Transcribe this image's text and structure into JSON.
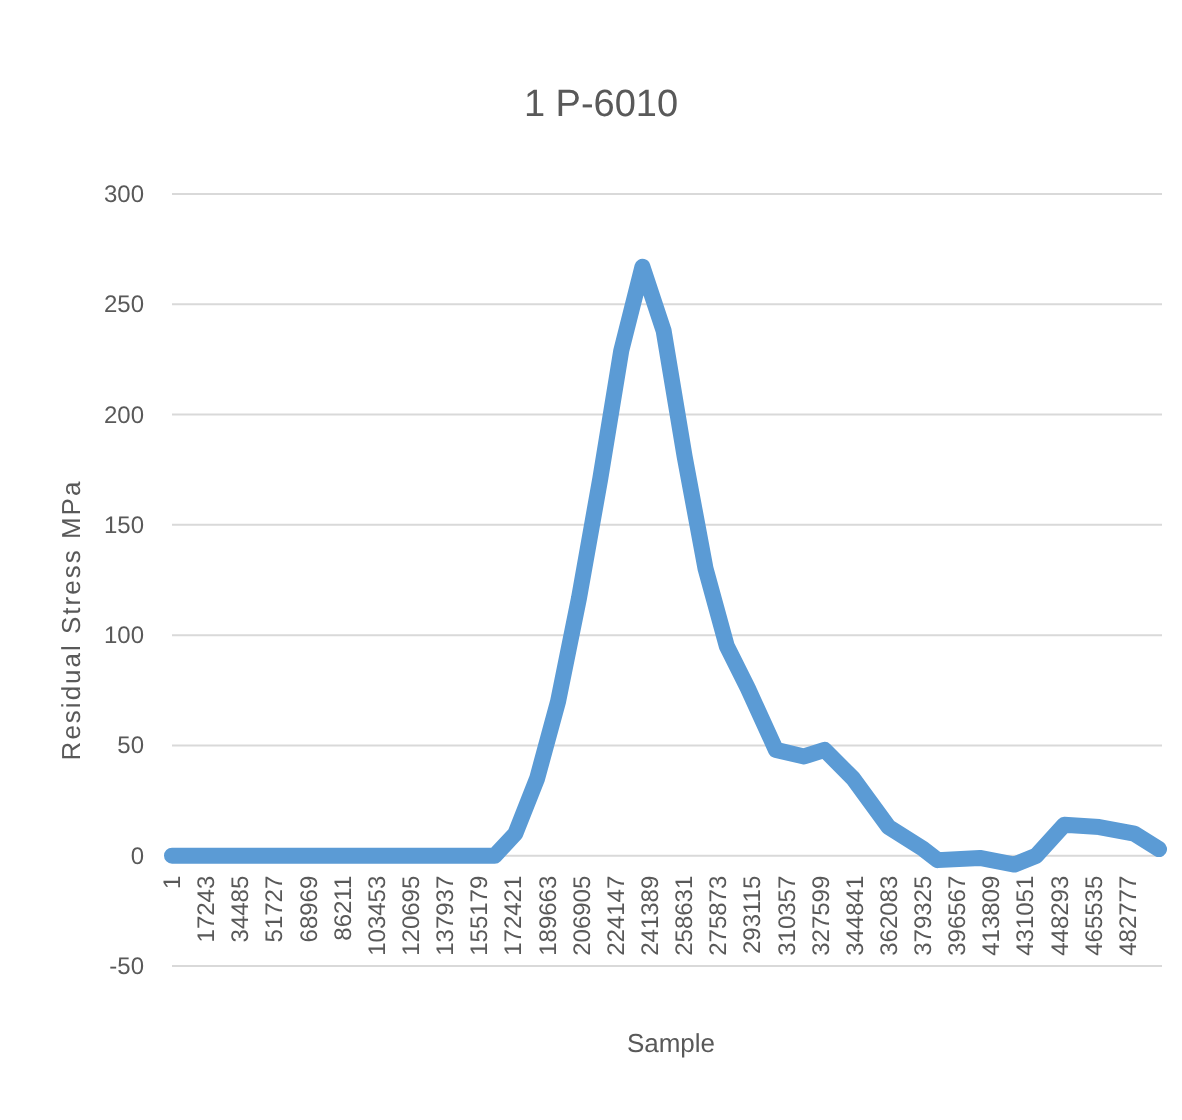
{
  "chart_data": {
    "type": "line",
    "title": "1 P-6010",
    "xlabel": "Sample",
    "ylabel": "Residual Stress MPa",
    "x": [
      1,
      163000,
      173400,
      184400,
      195000,
      205600,
      216300,
      226900,
      237600,
      248300,
      258900,
      269500,
      280200,
      290800,
      305000,
      319200,
      329600,
      344000,
      361900,
      379500,
      386700,
      408000,
      425500,
      436500,
      450600,
      468300,
      486000,
      498500
    ],
    "series": [
      {
        "color": "#5b9bd5",
        "values": [
          0,
          0,
          10,
          35,
          70,
          117,
          171,
          229,
          267,
          238,
          181,
          130,
          95,
          76,
          48,
          45,
          48,
          35,
          13,
          3,
          -2,
          -1,
          -4,
          0,
          14,
          13,
          10,
          3
        ]
      }
    ],
    "xlim": [
      1,
      500000
    ],
    "xticks": [
      1,
      17243,
      34485,
      51727,
      68969,
      86211,
      103453,
      120695,
      137937,
      155179,
      172421,
      189663,
      206905,
      224147,
      241389,
      258631,
      275873,
      293115,
      310357,
      327599,
      344841,
      362083,
      379325,
      396567,
      413809,
      431051,
      448293,
      465535,
      482777
    ],
    "ylim": [
      -50,
      300
    ],
    "yticks": [
      -50,
      0,
      50,
      100,
      150,
      200,
      250,
      300
    ],
    "grid": "y",
    "marker": "none",
    "line_style": "solid"
  }
}
